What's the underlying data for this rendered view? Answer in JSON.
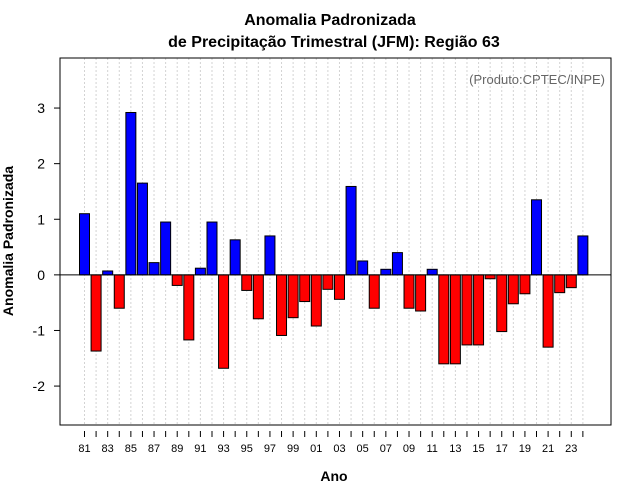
{
  "chart_data": {
    "type": "bar",
    "title": "Anomalia Padronizada",
    "subtitle": "de Precipitação Trimestral (JFM): Região 63",
    "xlabel": "Ano",
    "ylabel": "Anomalia Padronizada",
    "credit": "(Produto:CPTEC/INPE)",
    "ylim": [
      -2.7,
      3.9
    ],
    "yticks": [
      -2,
      -1,
      0,
      1,
      2,
      3
    ],
    "ytick_labels": [
      "-2",
      "-1",
      "0",
      "1",
      "2",
      "3"
    ],
    "categories": [
      "1981",
      "1982",
      "1983",
      "1984",
      "1985",
      "1986",
      "1987",
      "1988",
      "1989",
      "1990",
      "1991",
      "1992",
      "1993",
      "1994",
      "1995",
      "1996",
      "1997",
      "1998",
      "1999",
      "2000",
      "2001",
      "2002",
      "2003",
      "2004",
      "2005",
      "2006",
      "2007",
      "2008",
      "2009",
      "2010",
      "2011",
      "2012",
      "2013",
      "2014",
      "2015",
      "2016",
      "2017",
      "2018",
      "2019",
      "2020",
      "2021",
      "2022",
      "2023",
      "2024"
    ],
    "xtick_labels": [
      "81",
      "83",
      "85",
      "87",
      "89",
      "91",
      "93",
      "95",
      "97",
      "99",
      "01",
      "03",
      "05",
      "07",
      "09",
      "11",
      "13",
      "15",
      "17",
      "19",
      "21",
      "23"
    ],
    "values": [
      1.1,
      -1.37,
      0.07,
      -0.6,
      2.92,
      1.65,
      0.22,
      0.95,
      -0.19,
      -1.17,
      0.12,
      0.95,
      -1.68,
      0.63,
      -0.28,
      -0.79,
      0.7,
      -1.09,
      -0.77,
      -0.48,
      -0.92,
      -0.26,
      -0.44,
      1.59,
      0.25,
      -0.6,
      0.1,
      0.4,
      -0.6,
      -0.65,
      0.1,
      -1.6,
      -1.6,
      -1.26,
      -1.26,
      -0.07,
      -1.02,
      -0.52,
      -0.34,
      1.35,
      -1.3,
      -0.32,
      -0.23,
      0.7
    ],
    "positive_color": "#0000ff",
    "negative_color": "#ff0000",
    "grid": true,
    "legend": "none"
  }
}
